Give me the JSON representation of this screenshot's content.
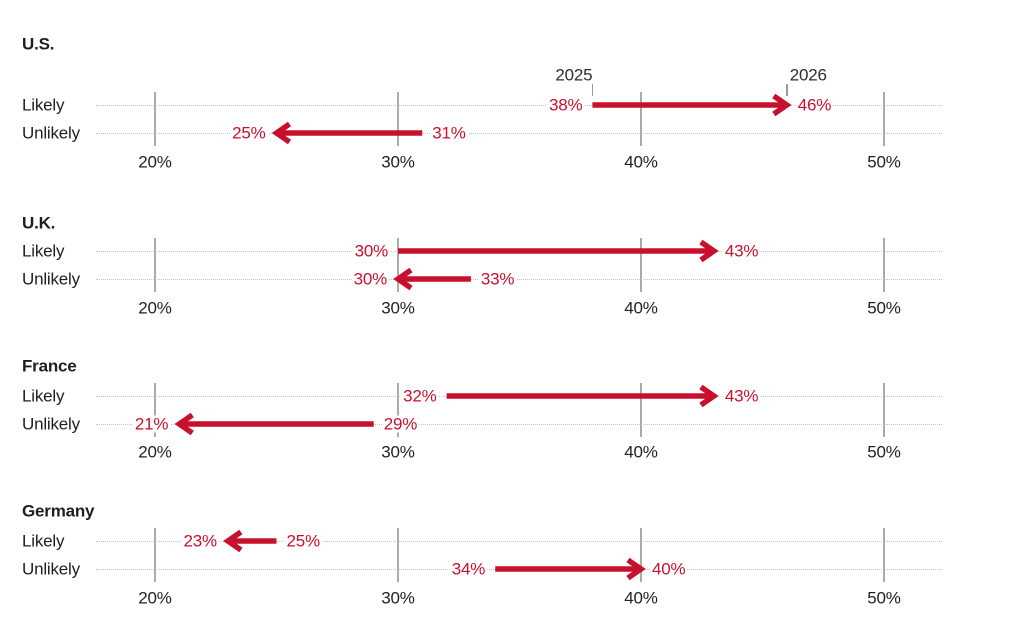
{
  "colors": {
    "accent": "#c8102e",
    "text": "#1f1f1f",
    "grid_dotted": "#c4c4c4",
    "axis_tick_line": "#aaaaaa",
    "year_tick_line": "#9a9a9a"
  },
  "chart_data": {
    "type": "arrow",
    "unit": "%",
    "axis": {
      "min": 20,
      "max": 50,
      "ticks": [
        20,
        30,
        40,
        50
      ],
      "tick_labels": [
        "20%",
        "30%",
        "40%",
        "50%"
      ]
    },
    "row_labels": [
      "Likely",
      "Unlikely"
    ],
    "year_annotations": {
      "applies_to_panel": "U.S.",
      "applies_to_row": "Likely",
      "items": [
        {
          "label": "2025",
          "at_percent": 38
        },
        {
          "label": "2026",
          "at_percent": 46
        }
      ]
    },
    "panels": [
      {
        "title": "U.S.",
        "rows": [
          {
            "label": "Likely",
            "from": 38,
            "to": 46,
            "from_label": "38%",
            "to_label": "46%"
          },
          {
            "label": "Unlikely",
            "from": 31,
            "to": 25,
            "from_label": "31%",
            "to_label": "25%"
          }
        ]
      },
      {
        "title": "U.K.",
        "rows": [
          {
            "label": "Likely",
            "from": 30,
            "to": 43,
            "from_label": "30%",
            "to_label": "43%"
          },
          {
            "label": "Unlikely",
            "from": 33,
            "to": 30,
            "from_label": "33%",
            "to_label": "30%"
          }
        ]
      },
      {
        "title": "France",
        "rows": [
          {
            "label": "Likely",
            "from": 32,
            "to": 43,
            "from_label": "32%",
            "to_label": "43%"
          },
          {
            "label": "Unlikely",
            "from": 29,
            "to": 21,
            "from_label": "29%",
            "to_label": "21%"
          }
        ]
      },
      {
        "title": "Germany",
        "rows": [
          {
            "label": "Likely",
            "from": 25,
            "to": 23,
            "from_label": "25%",
            "to_label": "23%"
          },
          {
            "label": "Unlikely",
            "from": 34,
            "to": 40,
            "from_label": "34%",
            "to_label": "40%"
          }
        ]
      }
    ]
  }
}
